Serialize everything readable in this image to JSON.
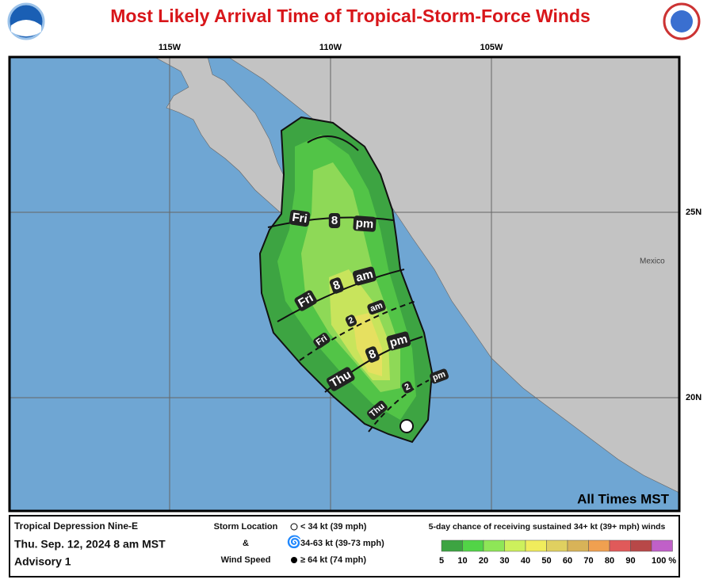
{
  "header": {
    "title": "Most Likely Arrival Time of Tropical-Storm-Force Winds"
  },
  "map": {
    "longitudes": [
      "115W",
      "110W",
      "105W"
    ],
    "latitudes": [
      "25N",
      "20N"
    ],
    "country": "Mexico",
    "time_zone_note": "All Times MST",
    "arrival_times": [
      {
        "day": "Fri",
        "time": "8",
        "period": "pm"
      },
      {
        "day": "Fri",
        "time": "8",
        "period": "am"
      },
      {
        "day": "Fri",
        "time": "2",
        "period": "am"
      },
      {
        "day": "Thu",
        "time": "8",
        "period": "pm"
      },
      {
        "day": "Thu",
        "time": "2",
        "period": "pm"
      }
    ]
  },
  "legend": {
    "storm_name": "Tropical Depression Nine-E",
    "advisory_time": "Thu. Sep. 12, 2024  8 am MST",
    "advisory_number": "Advisory 1",
    "storm_location": "Storm Location",
    "ampersand": "&",
    "wind_speed": "Wind Speed",
    "intensities": [
      "< 34 kt (39 mph)",
      "34-63 kt (39-73 mph)",
      "≥ 64 kt (74 mph)"
    ],
    "scale_title": "5-day chance of receiving sustained 34+ kt (39+ mph) winds",
    "scale_labels": [
      "5",
      "10",
      "20",
      "30",
      "40",
      "50",
      "60",
      "70",
      "80",
      "90",
      "100 %"
    ],
    "scale_colors": [
      "#3da442",
      "#52d447",
      "#8ee657",
      "#cdf05c",
      "#f0ec5c",
      "#e0d060",
      "#d8b358",
      "#f0a050",
      "#e05a5a",
      "#b84848",
      "#c060c8"
    ]
  }
}
